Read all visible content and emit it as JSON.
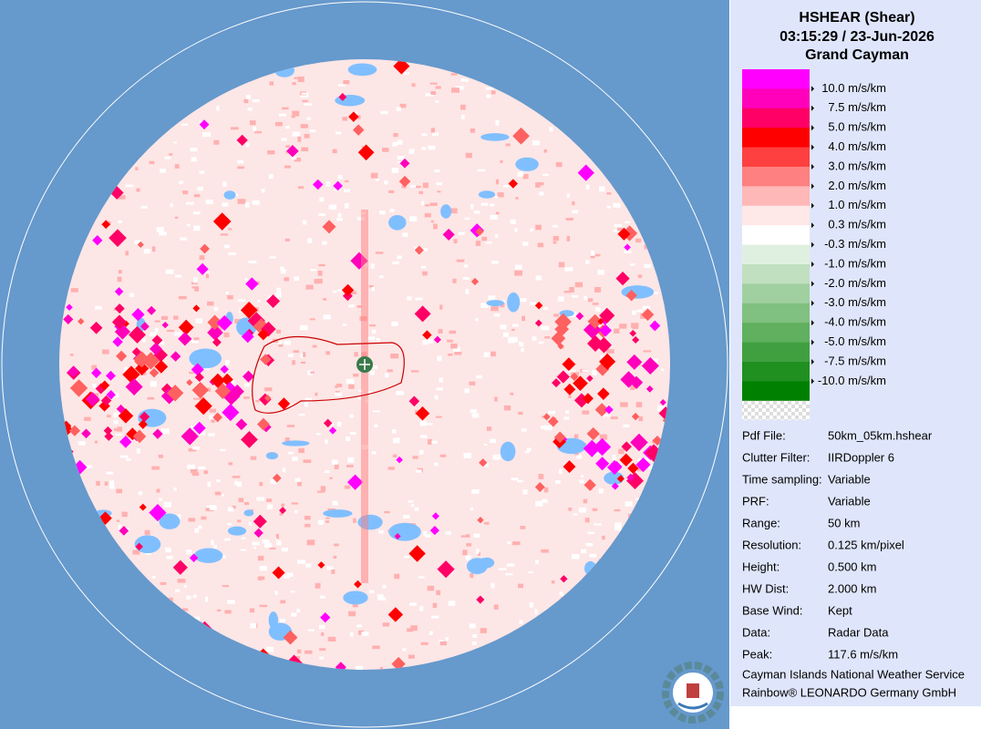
{
  "header": {
    "title": "HSHEAR (Shear)",
    "timestamp": "03:15:29 / 23-Jun-2026",
    "site": "Grand Cayman"
  },
  "legend": {
    "colors": [
      "#ff00ff",
      "#ff00bb",
      "#ff0066",
      "#ff0000",
      "#ff4040",
      "#ff8080",
      "#ffb8b8",
      "#ffe8e8",
      "#ffffff",
      "#e0f0e0",
      "#c0e0c0",
      "#a0d0a0",
      "#80c080",
      "#60b060",
      "#40a040",
      "#209020",
      "#008000"
    ],
    "labels": [
      "10.0 m/s/km",
      "7.5 m/s/km",
      "5.0 m/s/km",
      "4.0 m/s/km",
      "3.0 m/s/km",
      "2.0 m/s/km",
      "1.0 m/s/km",
      "0.3 m/s/km",
      "-0.3 m/s/km",
      "-1.0 m/s/km",
      "-2.0 m/s/km",
      "-3.0 m/s/km",
      "-4.0 m/s/km",
      "-5.0 m/s/km",
      "-7.5 m/s/km",
      "-10.0 m/s/km"
    ]
  },
  "info": {
    "rows": [
      [
        "Pdf File:",
        "50km_05km.hshear"
      ],
      [
        "Clutter Filter:",
        "IIRDoppler 6"
      ],
      [
        "Time sampling:",
        "Variable"
      ],
      [
        "PRF:",
        "Variable"
      ],
      [
        "Range:",
        "50 km"
      ],
      [
        "Resolution:",
        "0.125 km/pixel"
      ],
      [
        "Height:",
        "0.500 km"
      ],
      [
        "HW Dist:",
        "2.000 km"
      ],
      [
        "Base Wind:",
        "Kept"
      ],
      [
        "Data:",
        "Radar Data"
      ],
      [
        "Peak:",
        "117.6 m/s/km"
      ]
    ]
  },
  "footer": [
    "Cayman Islands National Weather Service",
    "Rainbow® LEONARDO Germany GmbH"
  ]
}
